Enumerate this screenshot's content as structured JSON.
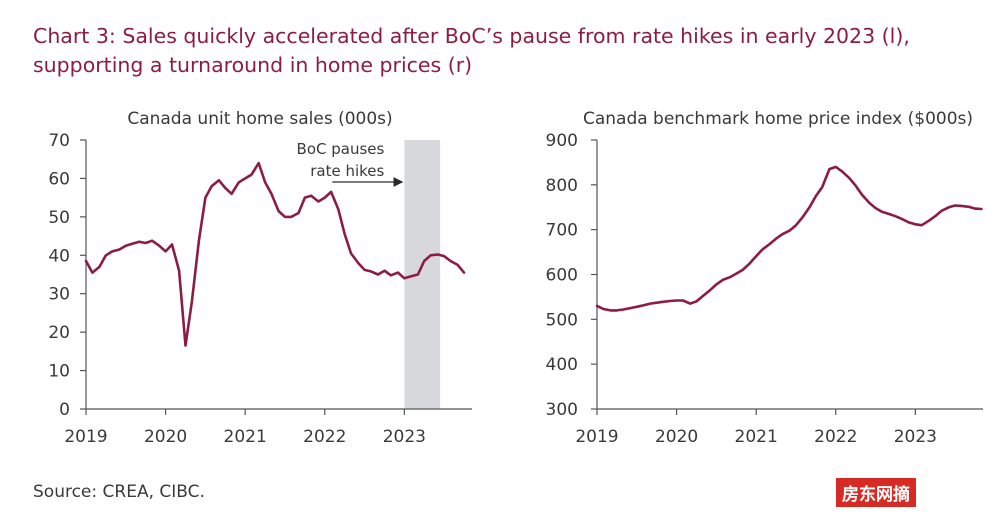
{
  "header": {
    "title_line1": "Chart 3: Sales quickly accelerated after BoC’s pause from rate hikes in early 2023 (l),",
    "title_line2": "supporting a turnaround in home prices (r)"
  },
  "source": "Source: CREA, CIBC.",
  "watermark": "房东网摘",
  "colors": {
    "title": "#8c1d40",
    "line": "#8c1d40",
    "shade": "#d7d8dc",
    "text": "#3a3a3a"
  },
  "chart_data": [
    {
      "type": "line",
      "title": "Canada unit home sales (000s)",
      "xticks": [
        "2019",
        "2020",
        "2021",
        "2022",
        "2023"
      ],
      "yticks": [
        "0",
        "10",
        "20",
        "30",
        "40",
        "50",
        "60",
        "70"
      ],
      "ylim": [
        0,
        70
      ],
      "xlim": [
        2019.0,
        2023.85
      ],
      "annotation": {
        "line1": "BoC pauses",
        "line2": "rate hikes",
        "arrow": "right"
      },
      "shaded_region": [
        2023.0,
        2023.45
      ],
      "series": [
        {
          "x": [
            2019.0,
            2019.08,
            2019.17,
            2019.25,
            2019.33,
            2019.42,
            2019.5,
            2019.58,
            2019.67,
            2019.75,
            2019.83,
            2019.92,
            2020.0,
            2020.08,
            2020.17,
            2020.25,
            2020.33,
            2020.42,
            2020.5,
            2020.58,
            2020.67,
            2020.75,
            2020.83,
            2020.92,
            2021.0,
            2021.08,
            2021.17,
            2021.25,
            2021.33,
            2021.42,
            2021.5,
            2021.58,
            2021.67,
            2021.75,
            2021.83,
            2021.92,
            2022.0,
            2022.08,
            2022.17,
            2022.25,
            2022.33,
            2022.42,
            2022.5,
            2022.58,
            2022.67,
            2022.75,
            2022.83,
            2022.92,
            2023.0,
            2023.08,
            2023.17,
            2023.25,
            2023.33,
            2023.42,
            2023.5,
            2023.58,
            2023.67,
            2023.75
          ],
          "values": [
            38.5,
            35.5,
            37.0,
            40.0,
            41.0,
            41.5,
            42.5,
            43.0,
            43.5,
            43.2,
            43.8,
            42.5,
            41.0,
            42.8,
            36.0,
            16.5,
            28.0,
            44.0,
            55.0,
            58.0,
            59.5,
            57.5,
            56.0,
            59.0,
            60.0,
            61.0,
            64.0,
            59.0,
            56.0,
            51.5,
            50.0,
            50.0,
            51.0,
            55.0,
            55.5,
            54.0,
            55.0,
            56.5,
            52.0,
            45.5,
            40.5,
            38.0,
            36.2,
            35.8,
            35.0,
            36.0,
            34.8,
            35.5,
            34.0,
            34.5,
            35.0,
            38.5,
            40.0,
            40.2,
            39.8,
            38.5,
            37.5,
            35.5
          ]
        }
      ]
    },
    {
      "type": "line",
      "title": "Canada benchmark home price index ($000s)",
      "xticks": [
        "2019",
        "2020",
        "2021",
        "2022",
        "2023"
      ],
      "yticks": [
        "300",
        "400",
        "500",
        "600",
        "700",
        "800",
        "900"
      ],
      "ylim": [
        300,
        900
      ],
      "xlim": [
        2019.0,
        2023.85
      ],
      "series": [
        {
          "x": [
            2019.0,
            2019.08,
            2019.17,
            2019.25,
            2019.33,
            2019.42,
            2019.5,
            2019.58,
            2019.67,
            2019.75,
            2019.83,
            2019.92,
            2020.0,
            2020.08,
            2020.17,
            2020.25,
            2020.33,
            2020.42,
            2020.5,
            2020.58,
            2020.67,
            2020.75,
            2020.83,
            2020.92,
            2021.0,
            2021.08,
            2021.17,
            2021.25,
            2021.33,
            2021.42,
            2021.5,
            2021.58,
            2021.67,
            2021.75,
            2021.83,
            2021.92,
            2022.0,
            2022.08,
            2022.17,
            2022.25,
            2022.33,
            2022.42,
            2022.5,
            2022.58,
            2022.67,
            2022.75,
            2022.83,
            2022.92,
            2023.0,
            2023.08,
            2023.17,
            2023.25,
            2023.33,
            2023.42,
            2023.5,
            2023.58,
            2023.67,
            2023.75,
            2023.83
          ],
          "values": [
            530,
            523,
            520,
            520,
            522,
            525,
            528,
            531,
            535,
            537,
            539,
            541,
            542,
            542,
            535,
            540,
            552,
            565,
            578,
            588,
            594,
            602,
            610,
            625,
            641,
            656,
            668,
            680,
            690,
            698,
            710,
            727,
            750,
            775,
            795,
            835,
            840,
            830,
            815,
            798,
            778,
            760,
            748,
            740,
            735,
            730,
            724,
            716,
            712,
            710,
            720,
            730,
            742,
            750,
            754,
            753,
            751,
            747,
            746
          ]
        }
      ]
    }
  ]
}
